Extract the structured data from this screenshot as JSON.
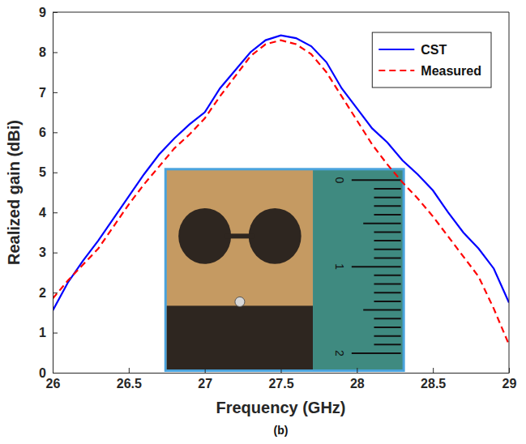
{
  "chart_data": {
    "type": "line",
    "caption": "(b)",
    "x_label": "Frequency (GHz)",
    "y_label": "Realized gain (dBi)",
    "x": [
      26,
      26.1,
      26.2,
      26.3,
      26.4,
      26.5,
      26.6,
      26.7,
      26.8,
      26.9,
      27,
      27.1,
      27.2,
      27.3,
      27.4,
      27.5,
      27.6,
      27.7,
      27.8,
      27.9,
      28,
      28.1,
      28.2,
      28.3,
      28.4,
      28.5,
      28.6,
      28.7,
      28.8,
      28.9,
      29
    ],
    "series": [
      {
        "name": "CST",
        "color": "#0000ff",
        "line_style": "solid",
        "values": [
          1.55,
          2.25,
          2.8,
          3.3,
          3.85,
          4.4,
          4.95,
          5.45,
          5.85,
          6.2,
          6.5,
          7.1,
          7.55,
          8.0,
          8.3,
          8.42,
          8.35,
          8.15,
          7.75,
          7.1,
          6.6,
          6.1,
          5.75,
          5.3,
          4.95,
          4.55,
          4.0,
          3.5,
          3.1,
          2.6,
          1.75
        ]
      },
      {
        "name": "Measured",
        "color": "#ff0000",
        "line_style": "dashed",
        "values": [
          1.85,
          2.3,
          2.7,
          3.1,
          3.65,
          4.2,
          4.7,
          5.15,
          5.6,
          5.95,
          6.35,
          6.9,
          7.4,
          7.9,
          8.2,
          8.3,
          8.2,
          7.95,
          7.5,
          6.9,
          6.3,
          5.7,
          5.2,
          4.75,
          4.35,
          3.9,
          3.4,
          2.9,
          2.4,
          1.6,
          0.7
        ]
      }
    ],
    "xlim": [
      26,
      29
    ],
    "xticks": [
      26,
      26.5,
      27,
      27.5,
      28,
      28.5,
      29
    ],
    "ylim": [
      0,
      9
    ],
    "yticks": [
      0,
      1,
      2,
      3,
      4,
      5,
      6,
      7,
      8,
      9
    ],
    "grid": false,
    "legend": "upper right",
    "inset_ruler_labels": [
      0,
      1,
      2
    ]
  }
}
